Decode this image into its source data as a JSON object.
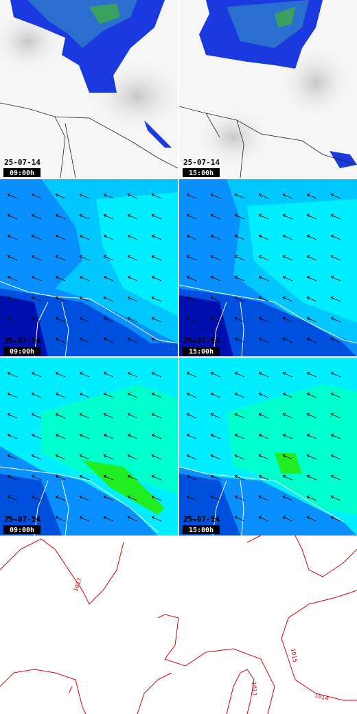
{
  "panels": [
    {
      "date": "25-07-14",
      "time": "09:00h"
    },
    {
      "date": "25-07-14",
      "time": "15:00h"
    },
    {
      "date": "25-07-14",
      "time": "09:00h"
    },
    {
      "date": "25-07-14",
      "time": "15:00h"
    },
    {
      "date": "25-07-14",
      "time": "09:00h"
    },
    {
      "date": "25-07-14",
      "time": "15:00h"
    }
  ],
  "isobar_labels": [
    "1017",
    "1015",
    "1013",
    "1014"
  ]
}
